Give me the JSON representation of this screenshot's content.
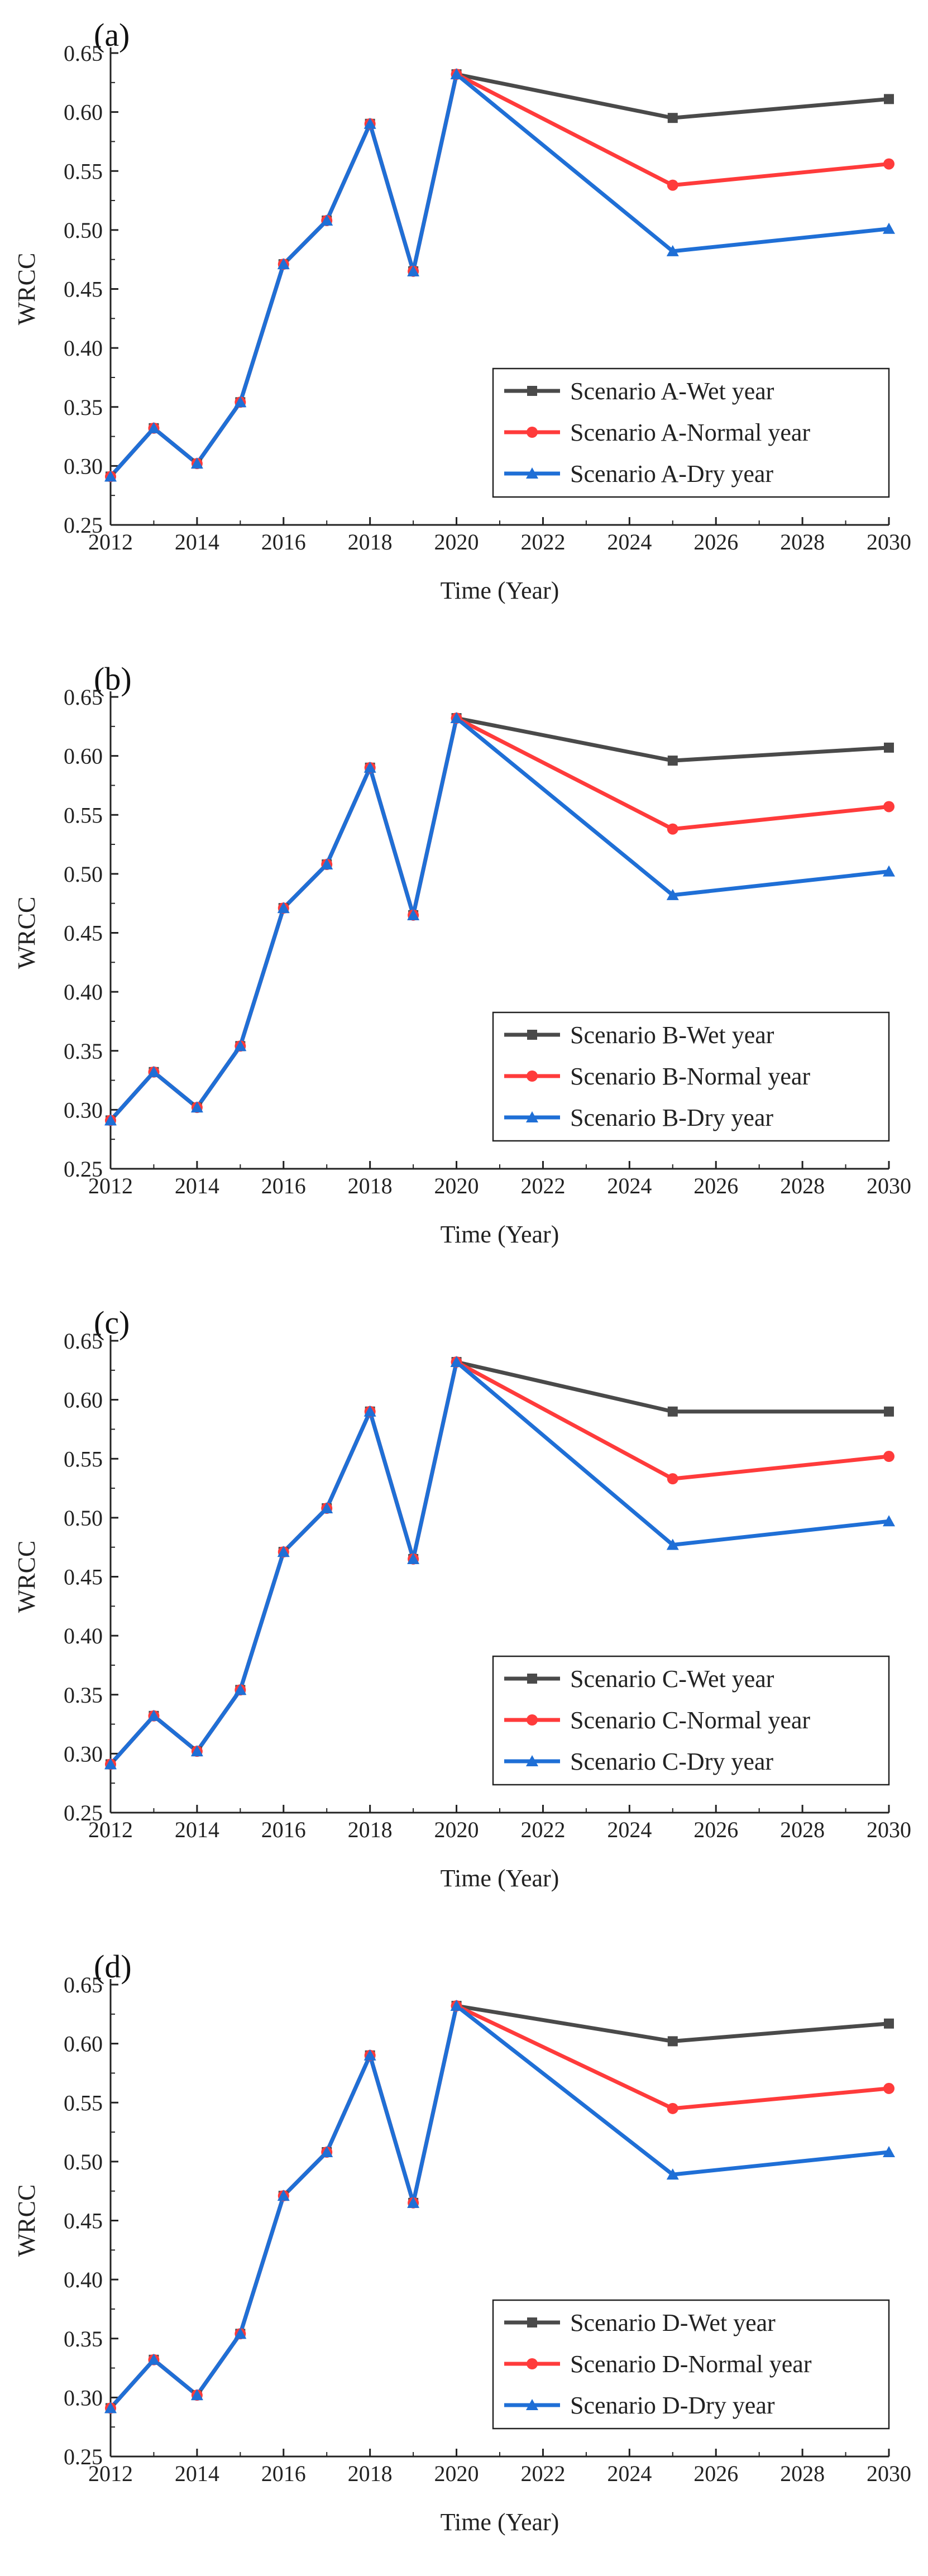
{
  "colors": {
    "wet": "#4a4a4a",
    "normal": "#ff3b3b",
    "dry": "#1f6fd6",
    "axis": "#222222"
  },
  "chart_data": [
    {
      "type": "line",
      "panel_label": "(a)",
      "xlabel": "Time (Year)",
      "ylabel": "WRCC",
      "xlim": [
        2012,
        2030
      ],
      "ylim": [
        0.25,
        0.65
      ],
      "xticks": [
        "2012",
        "2014",
        "2016",
        "2018",
        "2020",
        "2022",
        "2024",
        "2026",
        "2028",
        "2030"
      ],
      "yticks": [
        "0.25",
        "0.30",
        "0.35",
        "0.40",
        "0.45",
        "0.50",
        "0.55",
        "0.60",
        "0.65"
      ],
      "legend_position": "bottom-right",
      "series": [
        {
          "name": "Scenario A-Wet year",
          "marker": "square",
          "color_key": "wet",
          "x": [
            2012,
            2013,
            2014,
            2015,
            2016,
            2017,
            2018,
            2019,
            2020,
            2025,
            2030
          ],
          "y": [
            0.291,
            0.332,
            0.302,
            0.354,
            0.471,
            0.508,
            0.59,
            0.465,
            0.632,
            0.595,
            0.611
          ]
        },
        {
          "name": "Scenario A-Normal year",
          "marker": "circle",
          "color_key": "normal",
          "x": [
            2012,
            2013,
            2014,
            2015,
            2016,
            2017,
            2018,
            2019,
            2020,
            2025,
            2030
          ],
          "y": [
            0.291,
            0.332,
            0.302,
            0.354,
            0.471,
            0.508,
            0.59,
            0.465,
            0.632,
            0.538,
            0.556
          ]
        },
        {
          "name": "Scenario A-Dry year",
          "marker": "triangle",
          "color_key": "dry",
          "x": [
            2012,
            2013,
            2014,
            2015,
            2016,
            2017,
            2018,
            2019,
            2020,
            2025,
            2030
          ],
          "y": [
            0.291,
            0.332,
            0.302,
            0.354,
            0.471,
            0.508,
            0.59,
            0.465,
            0.632,
            0.482,
            0.501
          ]
        }
      ]
    },
    {
      "type": "line",
      "panel_label": "(b)",
      "xlabel": "Time (Year)",
      "ylabel": "WRCC",
      "xlim": [
        2012,
        2030
      ],
      "ylim": [
        0.25,
        0.65
      ],
      "xticks": [
        "2012",
        "2014",
        "2016",
        "2018",
        "2020",
        "2022",
        "2024",
        "2026",
        "2028",
        "2030"
      ],
      "yticks": [
        "0.25",
        "0.30",
        "0.35",
        "0.40",
        "0.45",
        "0.50",
        "0.55",
        "0.60",
        "0.65"
      ],
      "legend_position": "bottom-right",
      "series": [
        {
          "name": "Scenario B-Wet year",
          "marker": "square",
          "color_key": "wet",
          "x": [
            2012,
            2013,
            2014,
            2015,
            2016,
            2017,
            2018,
            2019,
            2020,
            2025,
            2030
          ],
          "y": [
            0.291,
            0.332,
            0.302,
            0.354,
            0.471,
            0.508,
            0.59,
            0.465,
            0.632,
            0.596,
            0.607
          ]
        },
        {
          "name": "Scenario B-Normal year",
          "marker": "circle",
          "color_key": "normal",
          "x": [
            2012,
            2013,
            2014,
            2015,
            2016,
            2017,
            2018,
            2019,
            2020,
            2025,
            2030
          ],
          "y": [
            0.291,
            0.332,
            0.302,
            0.354,
            0.471,
            0.508,
            0.59,
            0.465,
            0.632,
            0.538,
            0.557
          ]
        },
        {
          "name": "Scenario B-Dry year",
          "marker": "triangle",
          "color_key": "dry",
          "x": [
            2012,
            2013,
            2014,
            2015,
            2016,
            2017,
            2018,
            2019,
            2020,
            2025,
            2030
          ],
          "y": [
            0.291,
            0.332,
            0.302,
            0.354,
            0.471,
            0.508,
            0.59,
            0.465,
            0.632,
            0.482,
            0.502
          ]
        }
      ]
    },
    {
      "type": "line",
      "panel_label": "(c)",
      "xlabel": "Time (Year)",
      "ylabel": "WRCC",
      "xlim": [
        2012,
        2030
      ],
      "ylim": [
        0.25,
        0.65
      ],
      "xticks": [
        "2012",
        "2014",
        "2016",
        "2018",
        "2020",
        "2022",
        "2024",
        "2026",
        "2028",
        "2030"
      ],
      "yticks": [
        "0.25",
        "0.30",
        "0.35",
        "0.40",
        "0.45",
        "0.50",
        "0.55",
        "0.60",
        "0.65"
      ],
      "legend_position": "bottom-right",
      "series": [
        {
          "name": "Scenario C-Wet year",
          "marker": "square",
          "color_key": "wet",
          "x": [
            2012,
            2013,
            2014,
            2015,
            2016,
            2017,
            2018,
            2019,
            2020,
            2025,
            2030
          ],
          "y": [
            0.291,
            0.332,
            0.302,
            0.354,
            0.471,
            0.508,
            0.59,
            0.465,
            0.632,
            0.59,
            0.59
          ]
        },
        {
          "name": "Scenario C-Normal year",
          "marker": "circle",
          "color_key": "normal",
          "x": [
            2012,
            2013,
            2014,
            2015,
            2016,
            2017,
            2018,
            2019,
            2020,
            2025,
            2030
          ],
          "y": [
            0.291,
            0.332,
            0.302,
            0.354,
            0.471,
            0.508,
            0.59,
            0.465,
            0.632,
            0.533,
            0.552
          ]
        },
        {
          "name": "Scenario C-Dry year",
          "marker": "triangle",
          "color_key": "dry",
          "x": [
            2012,
            2013,
            2014,
            2015,
            2016,
            2017,
            2018,
            2019,
            2020,
            2025,
            2030
          ],
          "y": [
            0.291,
            0.332,
            0.302,
            0.354,
            0.471,
            0.508,
            0.59,
            0.465,
            0.632,
            0.477,
            0.497
          ]
        }
      ]
    },
    {
      "type": "line",
      "panel_label": "(d)",
      "xlabel": "Time (Year)",
      "ylabel": "WRCC",
      "xlim": [
        2012,
        2030
      ],
      "ylim": [
        0.25,
        0.65
      ],
      "xticks": [
        "2012",
        "2014",
        "2016",
        "2018",
        "2020",
        "2022",
        "2024",
        "2026",
        "2028",
        "2030"
      ],
      "yticks": [
        "0.25",
        "0.30",
        "0.35",
        "0.40",
        "0.45",
        "0.50",
        "0.55",
        "0.60",
        "0.65"
      ],
      "legend_position": "bottom-right",
      "series": [
        {
          "name": "Scenario D-Wet year",
          "marker": "square",
          "color_key": "wet",
          "x": [
            2012,
            2013,
            2014,
            2015,
            2016,
            2017,
            2018,
            2019,
            2020,
            2025,
            2030
          ],
          "y": [
            0.291,
            0.332,
            0.302,
            0.354,
            0.471,
            0.508,
            0.59,
            0.465,
            0.632,
            0.602,
            0.617
          ]
        },
        {
          "name": "Scenario D-Normal year",
          "marker": "circle",
          "color_key": "normal",
          "x": [
            2012,
            2013,
            2014,
            2015,
            2016,
            2017,
            2018,
            2019,
            2020,
            2025,
            2030
          ],
          "y": [
            0.291,
            0.332,
            0.302,
            0.354,
            0.471,
            0.508,
            0.59,
            0.465,
            0.632,
            0.545,
            0.562
          ]
        },
        {
          "name": "Scenario D-Dry year",
          "marker": "triangle",
          "color_key": "dry",
          "x": [
            2012,
            2013,
            2014,
            2015,
            2016,
            2017,
            2018,
            2019,
            2020,
            2025,
            2030
          ],
          "y": [
            0.291,
            0.332,
            0.302,
            0.354,
            0.471,
            0.508,
            0.59,
            0.465,
            0.632,
            0.489,
            0.508
          ]
        }
      ]
    }
  ]
}
